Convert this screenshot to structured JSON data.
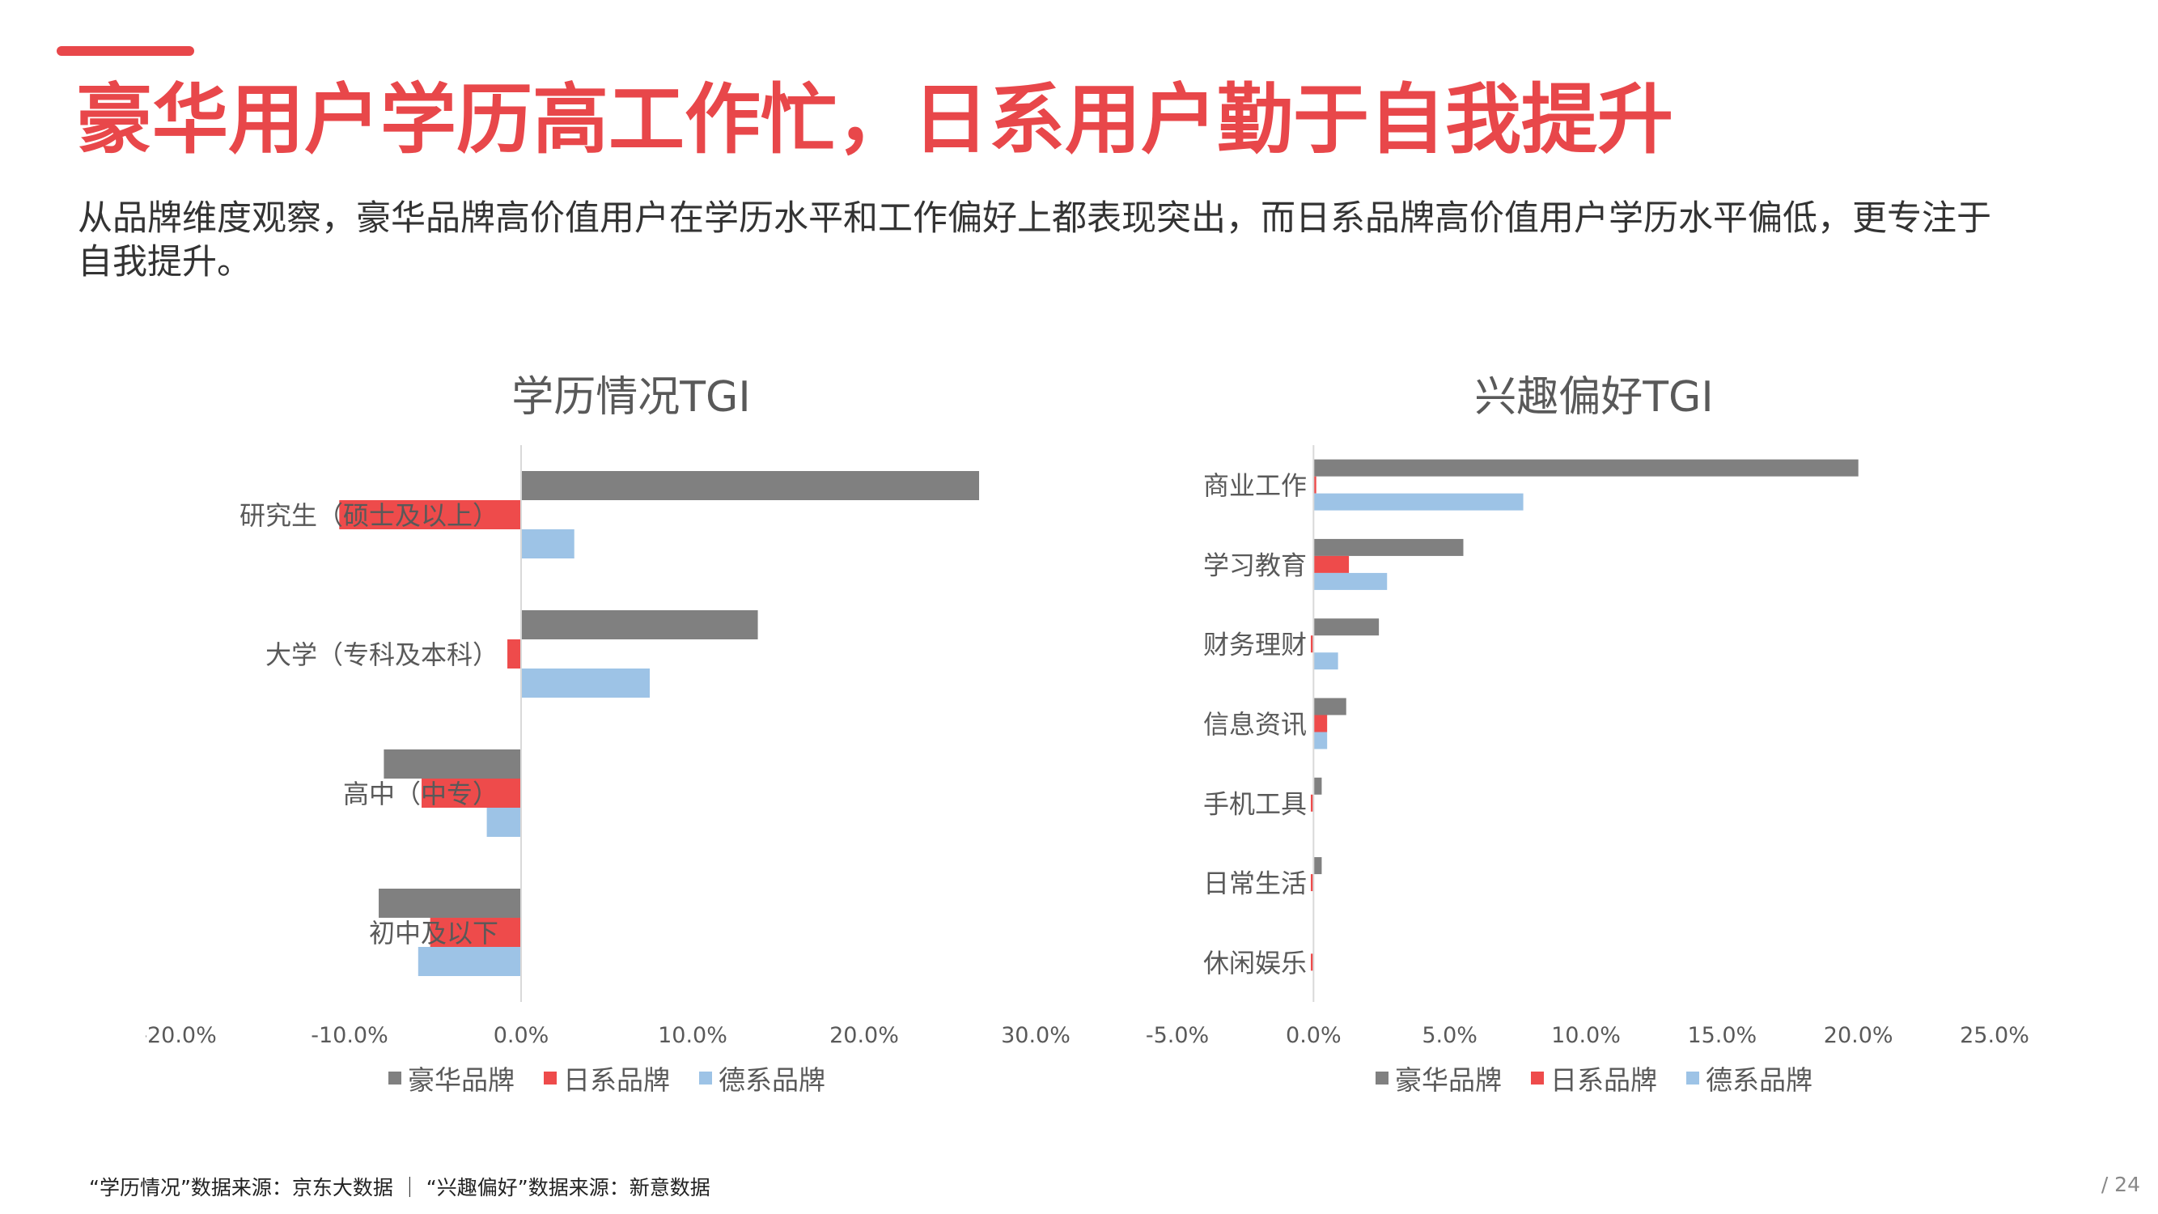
{
  "header": {
    "title": "豪华用户学历高工作忙，日系用户勤于自我提升",
    "subtitle": "从品牌维度观察，豪华品牌高价值用户在学历水平和工作偏好上都表现突出，而日系品牌高价值用户学历水平偏低，更专注于自我提升。"
  },
  "colors": {
    "accent": "#e8474a",
    "豪华品牌": "#808080",
    "日系品牌": "#ee4b4b",
    "德系品牌": "#9dc3e6"
  },
  "chart_data": [
    {
      "type": "bar",
      "orientation": "horizontal",
      "title": "学历情况TGI",
      "categories": [
        "研究生（硕士及以上）",
        "大学（专科及本科）",
        "高中（中专）",
        "初中及以下"
      ],
      "series": [
        {
          "name": "豪华品牌",
          "values": [
            26.7,
            13.8,
            -8.0,
            -8.3
          ]
        },
        {
          "name": "日系品牌",
          "values": [
            -10.6,
            -0.8,
            -5.8,
            -5.3
          ]
        },
        {
          "name": "德系品牌",
          "values": [
            3.1,
            7.5,
            -2.0,
            -6.0
          ]
        }
      ],
      "xlim": [
        -20,
        30
      ],
      "ticks": [
        "-20.0%",
        "-10.0%",
        "0.0%",
        "10.0%",
        "20.0%",
        "30.0%"
      ],
      "legend_position": "bottom"
    },
    {
      "type": "bar",
      "orientation": "horizontal",
      "title": "兴趣偏好TGI",
      "categories": [
        "商业工作",
        "学习教育",
        "财务理财",
        "信息资讯",
        "手机工具",
        "日常生活",
        "休闲娱乐"
      ],
      "series": [
        {
          "name": "豪华品牌",
          "values": [
            20.0,
            5.5,
            2.4,
            1.2,
            0.3,
            0.3,
            0.0
          ]
        },
        {
          "name": "日系品牌",
          "values": [
            0.1,
            1.3,
            -0.1,
            0.5,
            -0.1,
            -0.1,
            -0.1
          ]
        },
        {
          "name": "德系品牌",
          "values": [
            7.7,
            2.7,
            0.9,
            0.5,
            0.0,
            0.0,
            0.0
          ]
        }
      ],
      "xlim": [
        -5,
        25
      ],
      "ticks": [
        "-5.0%",
        "0.0%",
        "5.0%",
        "10.0%",
        "15.0%",
        "20.0%",
        "25.0%"
      ],
      "legend_position": "bottom"
    }
  ],
  "footer": {
    "source_note": "“学历情况”数据来源：京东大数据 ｜ “兴趣偏好”数据来源：新意数据",
    "page_number": "/ 24"
  }
}
